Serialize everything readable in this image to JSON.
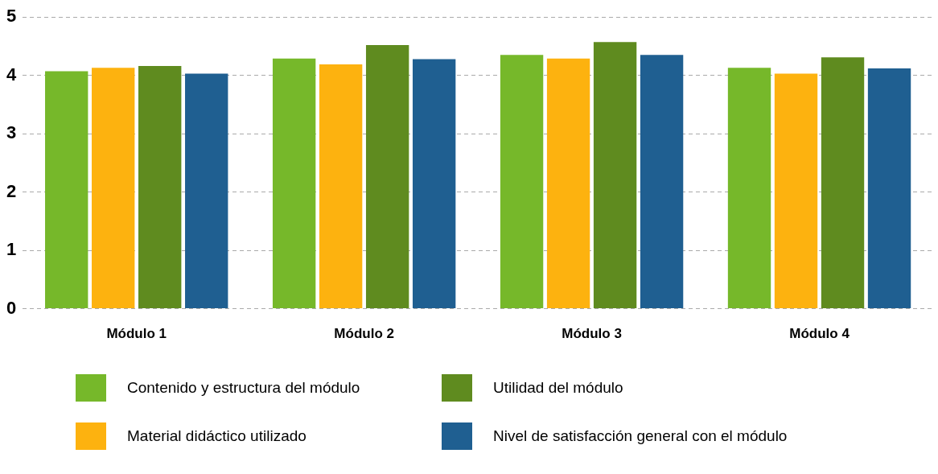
{
  "chart_data": {
    "type": "bar",
    "categories": [
      "Módulo 1",
      "Módulo 2",
      "Módulo 3",
      "Módulo 4"
    ],
    "series": [
      {
        "name": "Contenido y estructura del módulo",
        "color": "#76b82a",
        "values": [
          4.07,
          4.29,
          4.35,
          4.13
        ]
      },
      {
        "name": "Material didáctico utilizado",
        "color": "#fdb20f",
        "values": [
          4.13,
          4.19,
          4.29,
          4.03
        ]
      },
      {
        "name": "Utilidad del módulo",
        "color": "#5f8b1f",
        "values": [
          4.16,
          4.52,
          4.57,
          4.31
        ]
      },
      {
        "name": "Nivel de satisfacción general con el módulo",
        "color": "#1f5f91",
        "values": [
          4.03,
          4.28,
          4.35,
          4.12
        ]
      }
    ],
    "ylim": [
      0,
      5
    ],
    "yticks": [
      0,
      1,
      2,
      3,
      4,
      5
    ],
    "grid": "y",
    "legend": "bottom"
  }
}
